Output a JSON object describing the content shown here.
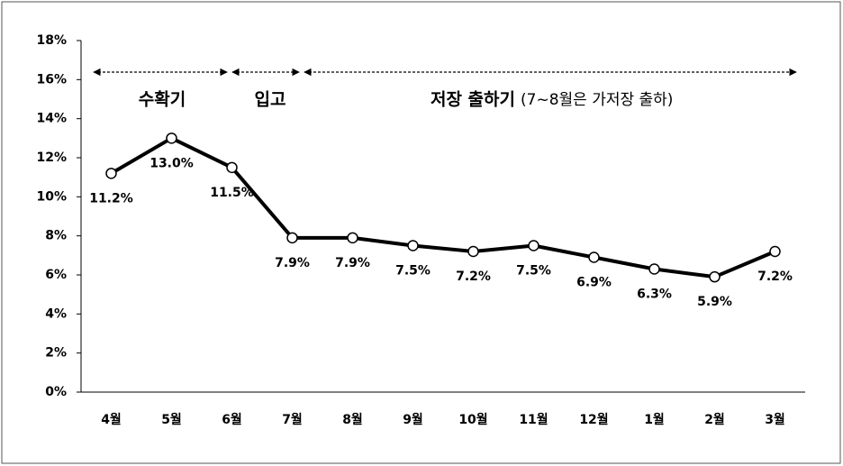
{
  "chart_data": {
    "type": "line",
    "categories": [
      "4월",
      "5월",
      "6월",
      "7월",
      "8월",
      "9월",
      "10월",
      "11월",
      "12월",
      "1월",
      "2월",
      "3월"
    ],
    "series": [
      {
        "color": "#000000",
        "values": [
          11.2,
          13.0,
          11.5,
          7.9,
          7.9,
          7.5,
          7.2,
          7.5,
          6.9,
          6.3,
          5.9,
          7.2
        ],
        "value_labels": [
          "11.2%",
          "13.0%",
          "11.5%",
          "7.9%",
          "7.9%",
          "7.5%",
          "7.2%",
          "7.5%",
          "6.9%",
          "6.3%",
          "5.9%",
          "7.2%"
        ]
      }
    ],
    "ylim": [
      0,
      18
    ],
    "yticks": [
      {
        "value": 0,
        "label": "0%"
      },
      {
        "value": 2,
        "label": "2%"
      },
      {
        "value": 4,
        "label": "4%"
      },
      {
        "value": 6,
        "label": "6%"
      },
      {
        "value": 8,
        "label": "8%"
      },
      {
        "value": 10,
        "label": "10%"
      },
      {
        "value": 12,
        "label": "12%"
      },
      {
        "value": 14,
        "label": "14%"
      },
      {
        "value": 16,
        "label": "16%"
      },
      {
        "value": 18,
        "label": "18%"
      }
    ],
    "grid": false,
    "annotations": [
      "수확기",
      "입고",
      "저장 출하기",
      "(7~8월은 가저장 출하)"
    ]
  }
}
